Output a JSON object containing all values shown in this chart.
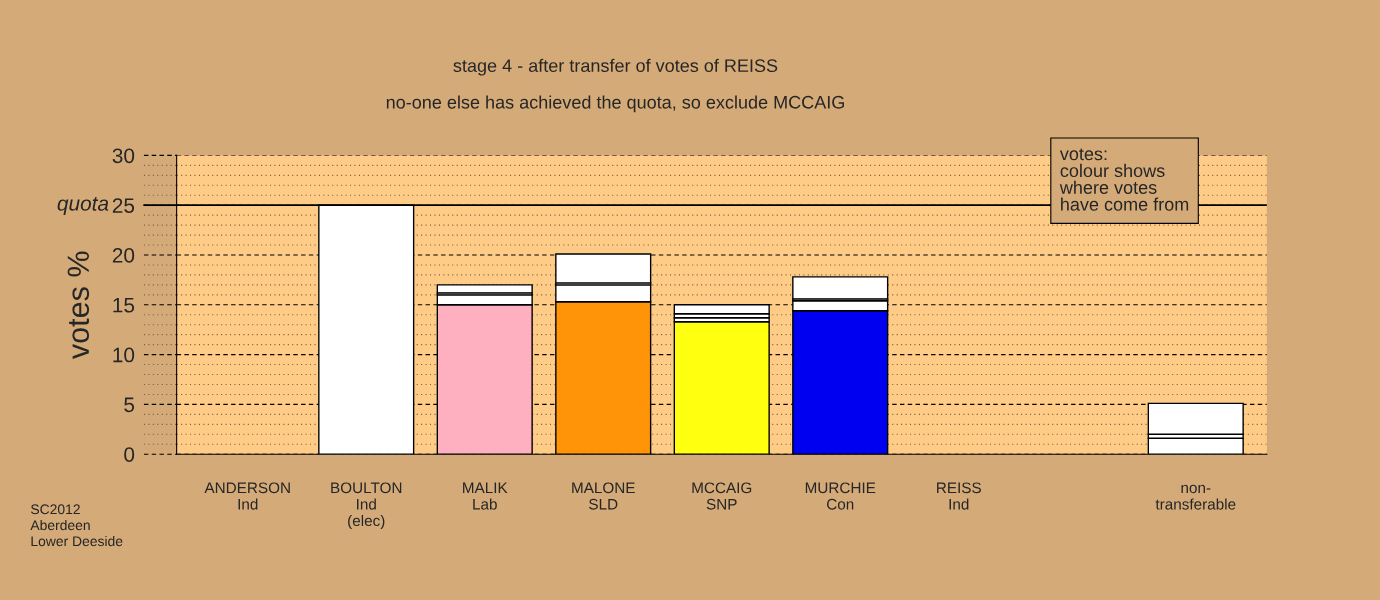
{
  "chart_data": {
    "type": "bar",
    "stacked": true,
    "title": "stage 4 - after transfer of votes of REISS",
    "subtitle": "no-one else has achieved the quota, so exclude MCCAIG",
    "ylabel": "votes %",
    "categories": [
      "ANDERSON\nInd",
      "BOULTON\nInd\n(elec)",
      "MALIK\nLab",
      "MALONE\nSLD",
      "MCCAIG\nSNP",
      "MURCHIE\nCon",
      "REISS\nInd",
      null,
      "non-\ntransferable"
    ],
    "series": [
      {
        "colors": [
          "#ffffff",
          "#ffffff",
          "#ffb0c0",
          "#ff9408",
          "#ffff10",
          "#0000f0",
          "#ffffff",
          "#ffffff",
          "#ffffff"
        ],
        "values": [
          0,
          25,
          15.0,
          15.3,
          13.3,
          14.4,
          0,
          null,
          1.6
        ]
      },
      {
        "color": "#ffffff",
        "values": [
          0,
          0,
          1.0,
          1.7,
          0.4,
          1.0,
          0,
          null,
          0.4
        ]
      },
      {
        "color": "#ffffff",
        "values": [
          0,
          0,
          0.2,
          0.2,
          0.4,
          0.2,
          0,
          null,
          0
        ]
      },
      {
        "color": "#ffffff",
        "values": [
          0,
          0,
          0.8,
          2.9,
          0.9,
          2.2,
          0,
          null,
          3.1
        ]
      }
    ],
    "ylim": [
      0,
      30
    ],
    "yticks": [
      0,
      {
        "value": 1,
        "label": null
      },
      {
        "value": 2,
        "label": null
      },
      {
        "value": 3,
        "label": null
      },
      {
        "value": 4,
        "label": null
      },
      5,
      {
        "value": 6,
        "label": null
      },
      {
        "value": 7,
        "label": null
      },
      {
        "value": 8,
        "label": null
      },
      {
        "value": 9,
        "label": null
      },
      10,
      {
        "value": 11,
        "label": null
      },
      {
        "value": 12,
        "label": null
      },
      {
        "value": 13,
        "label": null
      },
      {
        "value": 14,
        "label": null
      },
      15,
      {
        "value": 16,
        "label": null
      },
      {
        "value": 17,
        "label": null
      },
      {
        "value": 18,
        "label": null
      },
      {
        "value": 19,
        "label": null
      },
      20,
      {
        "value": 21,
        "label": null
      },
      {
        "value": 22,
        "label": null
      },
      {
        "value": 23,
        "label": null
      },
      {
        "value": 24,
        "label": null
      },
      25,
      {
        "value": 26,
        "label": null
      },
      {
        "value": 27,
        "label": null
      },
      {
        "value": 28,
        "label": null
      },
      {
        "value": 29,
        "label": null
      },
      30
    ],
    "grid": "y",
    "ref_lines": [
      {
        "axis": "y",
        "value": 25,
        "label": "quota",
        "color": "#000000",
        "line_style": "solid"
      }
    ],
    "annotations": [
      "votes:\ncolour shows\nwhere votes\nhave come from",
      "SC2012\nAberdeen\nLower Deeside"
    ]
  }
}
